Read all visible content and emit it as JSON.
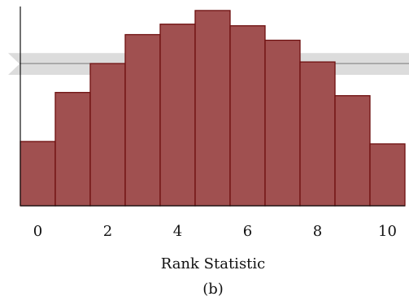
{
  "caption": "(b)",
  "chart_data": {
    "type": "bar",
    "title": "",
    "xlabel": "Rank Statistic",
    "ylabel": "",
    "categories": [
      "0",
      "1",
      "2",
      "3",
      "4",
      "5",
      "6",
      "7",
      "8",
      "9",
      "10"
    ],
    "values": [
      80,
      141,
      177,
      213,
      226,
      243,
      224,
      206,
      179,
      137,
      77
    ],
    "xticks": [
      "0",
      "2",
      "4",
      "6",
      "8",
      "10"
    ],
    "ylim": [
      0,
      250
    ],
    "expected_value": 177,
    "expected_band": [
      163,
      190
    ],
    "colors": {
      "bar_fill": "#A05050",
      "bar_stroke": "#6E1010",
      "band_fill": "#DCDCDC",
      "expected_line": "#8C8C8C",
      "axis": "#111111"
    }
  }
}
